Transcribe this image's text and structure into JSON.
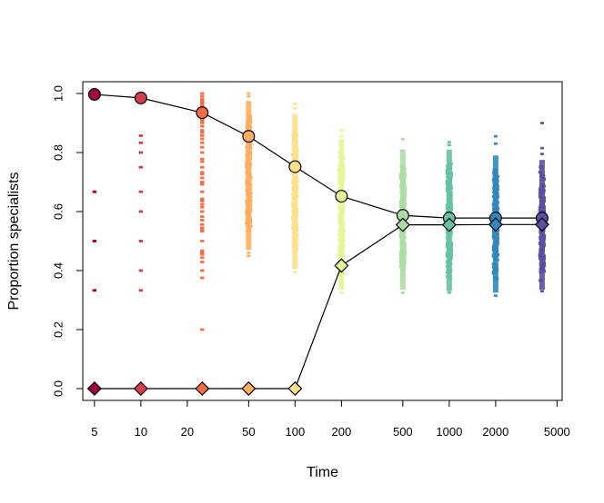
{
  "chart_data": {
    "type": "scatter",
    "title": "",
    "xlabel": "Time",
    "ylabel": "Proportion specialists",
    "x_scale": "log",
    "xlim": [
      4.2,
      5400
    ],
    "ylim": [
      -0.04,
      1.04
    ],
    "x_ticks": [
      5,
      10,
      20,
      50,
      100,
      200,
      500,
      1000,
      2000,
      5000
    ],
    "x_tick_labels": [
      "5",
      "10",
      "20",
      "50",
      "100",
      "200",
      "500",
      "1000",
      "2000",
      "5000"
    ],
    "y_ticks": [
      0.0,
      0.2,
      0.4,
      0.6,
      0.8,
      1.0
    ],
    "y_tick_labels": [
      "0.0",
      "0.2",
      "0.4",
      "0.6",
      "0.8",
      "1.0"
    ],
    "grid": false,
    "legend": "none",
    "x": [
      5,
      10,
      25,
      50,
      100,
      200,
      500,
      1000,
      2000,
      4000
    ],
    "colors": [
      "#9e0142",
      "#d53e4f",
      "#f46d43",
      "#fdae61",
      "#fee08b",
      "#e6f598",
      "#abdda4",
      "#66c2a5",
      "#3288bd",
      "#5e4fa2"
    ],
    "series": [
      {
        "marker": "circle",
        "values": [
          0.997,
          0.985,
          0.935,
          0.855,
          0.752,
          0.652,
          0.587,
          0.578,
          0.578,
          0.578
        ]
      },
      {
        "marker": "diamond",
        "values": [
          0.0,
          0.0,
          0.0,
          0.0,
          0.0,
          0.417,
          0.555,
          0.555,
          0.556,
          0.556
        ]
      }
    ],
    "replicate_points": [
      {
        "x": 5,
        "values": [
          0.333,
          0.5,
          0.667
        ]
      },
      {
        "x": 10,
        "values": [
          0.333,
          0.4,
          0.5,
          0.6,
          0.667,
          0.75,
          0.8,
          0.833,
          0.857
        ]
      },
      {
        "x": 25,
        "values": [
          0.2,
          0.375,
          0.4,
          0.429,
          0.444,
          0.455,
          0.462,
          0.467,
          0.5,
          0.533,
          0.538,
          0.545,
          0.556,
          0.571,
          0.583,
          0.6,
          0.615,
          0.625,
          0.636,
          0.643,
          0.667,
          0.692,
          0.7,
          0.714,
          0.727,
          0.733,
          0.75,
          0.769,
          0.778,
          0.8,
          0.818,
          0.833,
          0.846,
          0.857,
          0.867,
          0.875,
          0.889,
          0.9,
          0.909,
          0.917,
          0.923,
          0.929,
          0.933,
          0.938,
          0.941,
          0.944,
          0.95,
          0.955,
          0.96,
          0.964,
          0.97,
          0.975,
          0.98,
          0.99,
          1.0
        ]
      },
      {
        "x": 50,
        "range": [
          0.47,
          0.975
        ],
        "outliers": [
          0.45,
          0.46,
          1.0,
          0.99
        ]
      },
      {
        "x": 100,
        "range": [
          0.405,
          0.93
        ],
        "outliers": [
          0.395,
          0.95,
          0.965
        ]
      },
      {
        "x": 200,
        "range": [
          0.335,
          0.845
        ],
        "outliers": [
          0.325,
          0.855,
          0.875
        ]
      },
      {
        "x": 500,
        "range": [
          0.335,
          0.81
        ],
        "outliers": [
          0.325,
          0.845
        ]
      },
      {
        "x": 1000,
        "range": [
          0.33,
          0.81
        ],
        "outliers": [
          0.325,
          0.825,
          0.835
        ]
      },
      {
        "x": 2000,
        "range": [
          0.325,
          0.79
        ],
        "outliers": [
          0.315,
          0.83,
          0.855
        ]
      },
      {
        "x": 4000,
        "range": [
          0.335,
          0.775
        ],
        "outliers": [
          0.33,
          0.795,
          0.815,
          0.9
        ]
      }
    ]
  }
}
